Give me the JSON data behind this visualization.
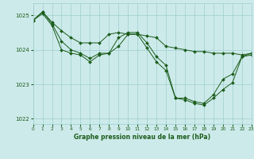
{
  "title": "Graphe pression niveau de la mer (hPa)",
  "background_color": "#cdeaea",
  "grid_color": "#9ecece",
  "line_color": "#1a5c1a",
  "x_min": 0,
  "x_max": 23,
  "y_min": 1021.85,
  "y_max": 1025.35,
  "yticks": [
    1022,
    1023,
    1024,
    1025
  ],
  "xticks": [
    0,
    1,
    2,
    3,
    4,
    5,
    6,
    7,
    8,
    9,
    10,
    11,
    12,
    13,
    14,
    15,
    16,
    17,
    18,
    19,
    20,
    21,
    22,
    23
  ],
  "series": [
    {
      "x": [
        0,
        1,
        2,
        3,
        4,
        5,
        6,
        7,
        8,
        9,
        10,
        11,
        12,
        13,
        14,
        15,
        16,
        17,
        18,
        19,
        20,
        21,
        22,
        23
      ],
      "y": [
        1024.85,
        1025.1,
        1024.8,
        1024.55,
        1024.35,
        1024.2,
        1024.2,
        1024.2,
        1024.45,
        1024.5,
        1024.45,
        1024.45,
        1024.4,
        1024.35,
        1024.1,
        1024.05,
        1024.0,
        1023.95,
        1023.95,
        1023.9,
        1023.9,
        1023.9,
        1023.85,
        1023.9
      ]
    },
    {
      "x": [
        0,
        1,
        2,
        3,
        4,
        5,
        6,
        7,
        8,
        9,
        10,
        11,
        12,
        13,
        14,
        15,
        16,
        17,
        18,
        19,
        20,
        21,
        22,
        23
      ],
      "y": [
        1024.85,
        1025.1,
        1024.75,
        1024.25,
        1024.0,
        1023.9,
        1023.75,
        1023.9,
        1023.9,
        1024.35,
        1024.5,
        1024.5,
        1024.2,
        1023.8,
        1023.55,
        1022.6,
        1022.6,
        1022.5,
        1022.45,
        1022.7,
        1023.15,
        1023.3,
        1023.8,
        1023.9
      ]
    },
    {
      "x": [
        0,
        1,
        2,
        3,
        4,
        5,
        6,
        7,
        8,
        9,
        10,
        11,
        12,
        13,
        14,
        15,
        16,
        17,
        18,
        19,
        20,
        21,
        22,
        23
      ],
      "y": [
        1024.85,
        1025.05,
        1024.7,
        1024.0,
        1023.9,
        1023.85,
        1023.65,
        1023.85,
        1023.9,
        1024.1,
        1024.45,
        1024.45,
        1024.05,
        1023.65,
        1023.4,
        1022.6,
        1022.55,
        1022.45,
        1022.4,
        1022.6,
        1022.85,
        1023.05,
        1023.8,
        1023.85
      ]
    }
  ]
}
